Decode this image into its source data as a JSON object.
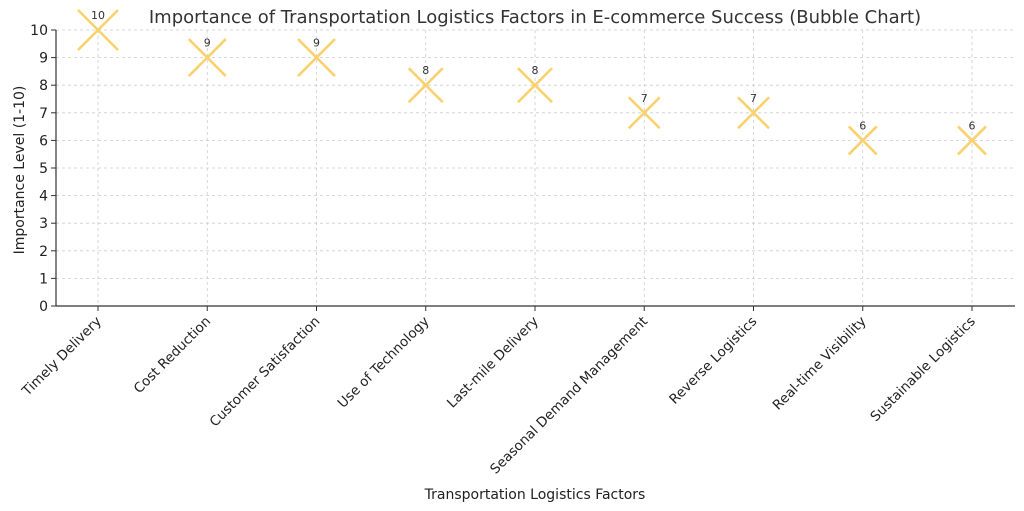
{
  "chart_data": {
    "type": "scatter",
    "title": "Importance of Transportation Logistics Factors in E-commerce Success (Bubble Chart)",
    "xlabel": "Transportation Logistics Factors",
    "ylabel": "Importance Level (1-10)",
    "categories": [
      "Timely Delivery",
      "Cost Reduction",
      "Customer Satisfaction",
      "Use of Technology",
      "Last-mile Delivery",
      "Seasonal Demand Management",
      "Reverse Logistics",
      "Real-time Visibility",
      "Sustainable Logistics"
    ],
    "values": [
      10,
      9,
      9,
      8,
      8,
      7,
      7,
      6,
      6
    ],
    "data_labels": [
      "10",
      "9",
      "9",
      "8",
      "8",
      "7",
      "7",
      "6",
      "6"
    ],
    "ylim": [
      0,
      10
    ],
    "yticks": [
      0,
      1,
      2,
      3,
      4,
      5,
      6,
      7,
      8,
      9,
      10
    ],
    "grid": true,
    "marker": "x",
    "marker_size_by_value": true,
    "color": "#f9d26d"
  }
}
